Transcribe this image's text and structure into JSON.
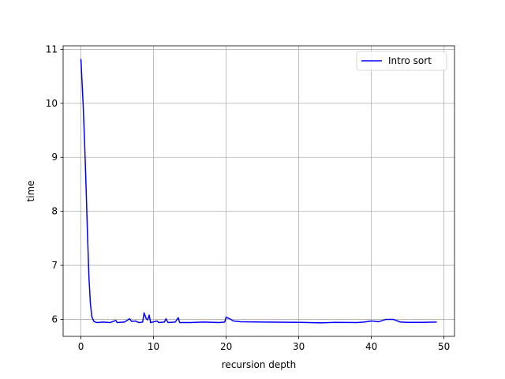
{
  "chart_data": {
    "type": "line",
    "xlabel": "recursion depth",
    "ylabel": "time",
    "x": [
      0,
      0.3,
      0.5,
      0.7,
      0.9,
      1.1,
      1.3,
      1.5,
      1.8,
      2.2,
      3,
      4,
      4.8,
      5,
      6,
      6.7,
      7,
      7.5,
      8,
      8.5,
      8.7,
      9,
      9.2,
      9.4,
      9.6,
      10.5,
      10.7,
      11.5,
      11.7,
      12,
      13,
      13.4,
      13.6,
      15,
      17,
      19,
      19.8,
      20,
      20.5,
      21,
      22,
      25,
      30,
      33,
      35,
      38,
      39,
      40,
      41,
      42,
      43,
      44,
      45,
      47,
      49
    ],
    "series": [
      {
        "name": "Intro sort",
        "color": "#0000ff",
        "values": [
          10.82,
          10.0,
          9.3,
          8.5,
          7.6,
          6.8,
          6.3,
          6.05,
          5.96,
          5.94,
          5.95,
          5.94,
          5.98,
          5.94,
          5.95,
          6.01,
          5.96,
          5.97,
          5.94,
          5.95,
          6.12,
          6.01,
          5.99,
          6.08,
          5.94,
          5.97,
          5.94,
          5.95,
          6.01,
          5.94,
          5.95,
          6.03,
          5.94,
          5.94,
          5.95,
          5.94,
          5.95,
          6.04,
          6.01,
          5.97,
          5.955,
          5.95,
          5.945,
          5.935,
          5.945,
          5.94,
          5.95,
          5.97,
          5.955,
          6.0,
          6.0,
          5.95,
          5.945,
          5.945,
          5.95
        ]
      }
    ],
    "xlim": [
      -2.45,
      51.45
    ],
    "xticks": [
      0,
      10,
      20,
      30,
      40,
      50
    ],
    "ylim": [
      5.685,
      11.065
    ],
    "yticks": [
      6,
      7,
      8,
      9,
      10,
      11
    ],
    "grid": true,
    "legend": "upper right"
  }
}
